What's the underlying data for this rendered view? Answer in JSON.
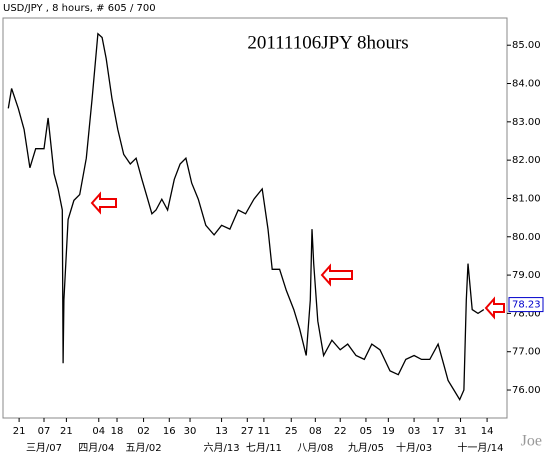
{
  "chart_data": {
    "type": "line",
    "title": "USD/JPY , 8 hours, # 605 / 700",
    "annotation": "20111106JPY 8hours",
    "watermark": "Joe",
    "color": "#000000",
    "last_price": 78.23,
    "x": [
      4,
      8,
      16,
      23,
      30,
      37,
      47,
      52,
      59,
      64,
      69,
      70,
      71,
      76,
      83,
      90,
      98,
      105,
      112,
      117,
      122,
      129,
      136,
      143,
      151,
      158,
      165,
      172,
      177,
      182,
      189,
      196,
      204,
      211,
      218,
      225,
      233,
      242,
      252,
      261,
      271,
      281,
      290,
      300,
      310,
      317,
      322,
      331,
      339,
      348,
      355,
      363,
      368,
      370,
      372,
      377,
      384,
      394,
      404,
      413,
      423,
      433,
      442,
      452,
      464,
      474,
      483,
      493,
      502,
      512,
      522,
      529,
      534,
      541,
      548,
      553,
      556,
      558,
      563,
      570,
      577
    ],
    "values": [
      83.35,
      83.87,
      83.35,
      82.8,
      81.8,
      82.3,
      82.3,
      83.1,
      81.65,
      81.25,
      80.7,
      76.7,
      78.35,
      80.45,
      80.95,
      81.1,
      82.05,
      83.6,
      85.3,
      85.2,
      84.65,
      83.6,
      82.8,
      82.15,
      81.9,
      82.05,
      81.5,
      80.98,
      80.6,
      80.7,
      80.98,
      80.7,
      81.5,
      81.9,
      82.05,
      81.4,
      80.98,
      80.3,
      80.05,
      80.3,
      80.2,
      80.7,
      80.6,
      80.98,
      81.25,
      80.2,
      79.15,
      79.15,
      78.6,
      78.1,
      77.6,
      76.9,
      78.35,
      80.2,
      79.3,
      77.8,
      76.9,
      77.3,
      77.05,
      77.2,
      76.9,
      76.8,
      77.2,
      77.05,
      76.5,
      76.4,
      76.8,
      76.9,
      76.8,
      76.8,
      77.2,
      76.65,
      76.25,
      76.0,
      75.75,
      76.0,
      78.35,
      79.3,
      78.1,
      78.0,
      78.1
    ],
    "xlim": [
      0,
      605
    ],
    "ylim": [
      75.27,
      85.71
    ],
    "xticks": [
      {
        "value": 17,
        "label": "21"
      },
      {
        "value": 47,
        "label": "07"
      },
      {
        "value": 74,
        "label": "21"
      },
      {
        "value": 113,
        "label": "04"
      },
      {
        "value": 135,
        "label": "18"
      },
      {
        "value": 167,
        "label": "02"
      },
      {
        "value": 198,
        "label": "16"
      },
      {
        "value": 223,
        "label": "30"
      },
      {
        "value": 261,
        "label": "13"
      },
      {
        "value": 292,
        "label": "27"
      },
      {
        "value": 312,
        "label": "11"
      },
      {
        "value": 345,
        "label": "25"
      },
      {
        "value": 374,
        "label": "08"
      },
      {
        "value": 404,
        "label": "22"
      },
      {
        "value": 435,
        "label": "05"
      },
      {
        "value": 462,
        "label": "19"
      },
      {
        "value": 493,
        "label": "03"
      },
      {
        "value": 522,
        "label": "17"
      },
      {
        "value": 549,
        "label": "31"
      },
      {
        "value": 581,
        "label": "14"
      }
    ],
    "month_ticks": [
      {
        "value": 47,
        "label": "三月/07"
      },
      {
        "value": 110,
        "label": "四月/04"
      },
      {
        "value": 167,
        "label": "五月/02"
      },
      {
        "value": 261,
        "label": "六月/13"
      },
      {
        "value": 312,
        "label": "七月/11"
      },
      {
        "value": 374,
        "label": "八月/08"
      },
      {
        "value": 435,
        "label": "九月/05"
      },
      {
        "value": 493,
        "label": "十月/03"
      },
      {
        "value": 573,
        "label": "十一月/14"
      }
    ],
    "yticks": [
      {
        "value": 76,
        "label": "76.00"
      },
      {
        "value": 77,
        "label": "77.00"
      },
      {
        "value": 78,
        "label": "78.00"
      },
      {
        "value": 79,
        "label": "79.00"
      },
      {
        "value": 80,
        "label": "80.00"
      },
      {
        "value": 81,
        "label": "81.00"
      },
      {
        "value": 82,
        "label": "82.00"
      },
      {
        "value": 83,
        "label": "83.00"
      },
      {
        "value": 84,
        "label": "84.00"
      },
      {
        "value": 85,
        "label": "85.00"
      }
    ]
  }
}
